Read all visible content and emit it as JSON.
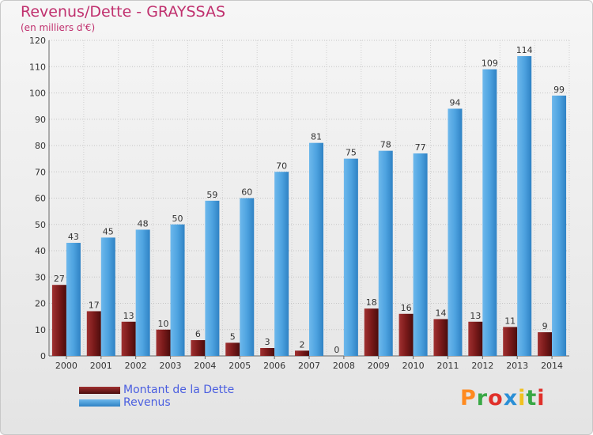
{
  "chart_data": {
    "type": "bar",
    "title": "Revenus/Dette - GRAYSSAS",
    "subtitle": "(en milliers d'€)",
    "categories": [
      "2000",
      "2001",
      "2002",
      "2003",
      "2004",
      "2005",
      "2006",
      "2007",
      "2008",
      "2009",
      "2010",
      "2011",
      "2012",
      "2013",
      "2014"
    ],
    "series": [
      {
        "name": "Montant de la Dette",
        "color": "#7a1a1a",
        "values": [
          27,
          17,
          13,
          10,
          6,
          5,
          3,
          2,
          0,
          18,
          16,
          14,
          13,
          11,
          9
        ]
      },
      {
        "name": "Revenus",
        "color": "#4ea3e0",
        "values": [
          43,
          45,
          48,
          50,
          59,
          60,
          70,
          81,
          75,
          78,
          77,
          94,
          109,
          114,
          99
        ]
      }
    ],
    "ylim": [
      0,
      120
    ],
    "yticks": [
      0,
      10,
      20,
      30,
      40,
      50,
      60,
      70,
      80,
      90,
      100,
      110,
      120
    ],
    "grid": true,
    "legend_position": "bottom-left"
  },
  "logo": {
    "text": "Proxiti",
    "colors": [
      "#ff8a1f",
      "#39a845",
      "#e0302a",
      "#2a8fd6",
      "#f1c11f",
      "#39a845",
      "#e0302a"
    ]
  }
}
